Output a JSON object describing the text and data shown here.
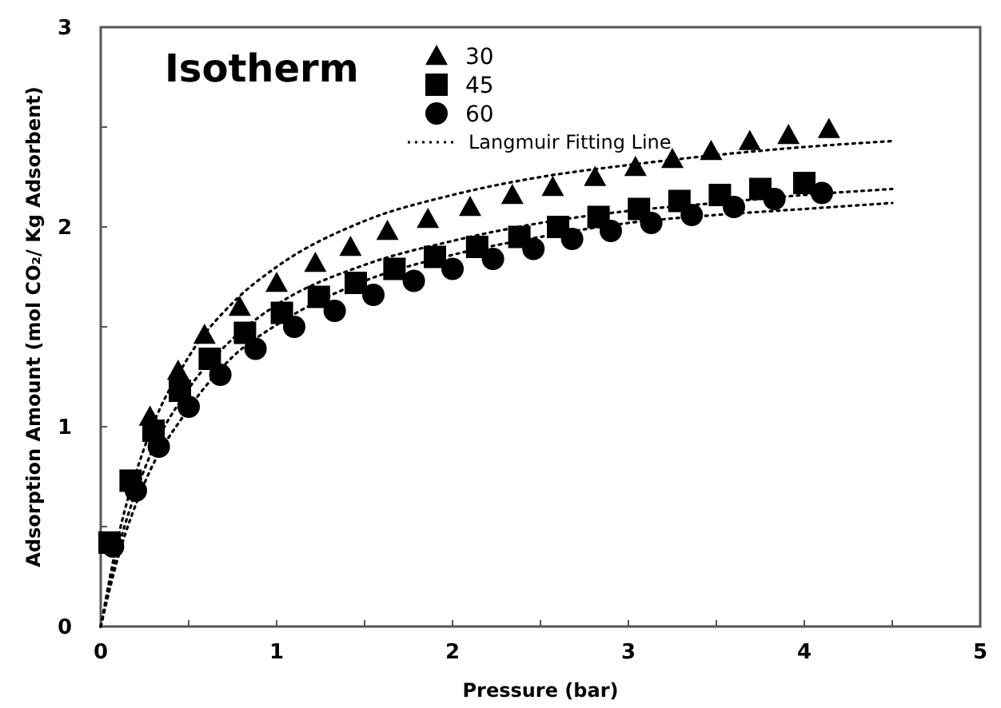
{
  "chart_data": {
    "type": "scatter",
    "xlabel": "Pressure (bar)",
    "ylabel": "Adsorption Amount (mol CO₂/ Kg Adsorbent)",
    "legend_title": "Isotherm",
    "legend": "top left",
    "grid": false,
    "xlim": [
      0,
      5
    ],
    "xticks": [
      0,
      {
        "value": 0.5,
        "label": null
      },
      1,
      {
        "value": 1.5,
        "label": null
      },
      2,
      {
        "value": 2.5,
        "label": null
      },
      3,
      {
        "value": 3.5,
        "label": null
      },
      4,
      {
        "value": 4.5,
        "label": null
      },
      5
    ],
    "ylim": [
      0,
      3
    ],
    "yticks": [
      0,
      {
        "value": 0.5,
        "label": null
      },
      1,
      {
        "value": 1.5,
        "label": null
      },
      2,
      {
        "value": 2.5,
        "label": null
      },
      3
    ],
    "series": [
      {
        "name": "30",
        "color": "#000000",
        "marker": "triangle",
        "x": [
          0.28,
          0.44,
          0.59,
          0.79,
          1.0,
          1.22,
          1.42,
          1.63,
          1.86,
          2.1,
          2.34,
          2.57,
          2.81,
          3.04,
          3.25,
          3.47,
          3.69,
          3.91,
          4.14
        ],
        "values": [
          1.05,
          1.28,
          1.46,
          1.6,
          1.72,
          1.82,
          1.9,
          1.98,
          2.04,
          2.1,
          2.16,
          2.2,
          2.25,
          2.3,
          2.34,
          2.38,
          2.43,
          2.46,
          2.49
        ]
      },
      {
        "name": "45",
        "color": "#000000",
        "marker": "square",
        "x": [
          0.05,
          0.17,
          0.3,
          0.45,
          0.62,
          0.82,
          1.03,
          1.24,
          1.45,
          1.67,
          1.9,
          2.14,
          2.38,
          2.6,
          2.83,
          3.06,
          3.29,
          3.52,
          3.75,
          4.0
        ],
        "values": [
          0.42,
          0.73,
          0.98,
          1.18,
          1.34,
          1.47,
          1.57,
          1.65,
          1.72,
          1.79,
          1.85,
          1.9,
          1.95,
          2.0,
          2.05,
          2.09,
          2.13,
          2.16,
          2.19,
          2.22
        ]
      },
      {
        "name": "60",
        "color": "#000000",
        "marker": "circle",
        "x": [
          0.07,
          0.2,
          0.33,
          0.5,
          0.68,
          0.88,
          1.1,
          1.33,
          1.55,
          1.78,
          2.0,
          2.23,
          2.46,
          2.68,
          2.9,
          3.13,
          3.36,
          3.6,
          3.83,
          4.1
        ],
        "values": [
          0.4,
          0.68,
          0.9,
          1.1,
          1.26,
          1.39,
          1.5,
          1.58,
          1.66,
          1.73,
          1.79,
          1.84,
          1.89,
          1.94,
          1.98,
          2.02,
          2.06,
          2.1,
          2.14,
          2.17
        ]
      },
      {
        "name": "Langmuir Fitting Line",
        "type": "line",
        "line_style": "dotted",
        "marker": "none",
        "color": "#000000",
        "x": [
          0,
          0.1,
          0.25,
          0.5,
          0.75,
          1,
          1.5,
          2,
          2.5,
          3,
          3.5,
          4,
          4.5
        ],
        "values": [
          0,
          0.45,
          0.9,
          1.35,
          1.62,
          1.8,
          2.03,
          2.16,
          2.25,
          2.31,
          2.36,
          2.4,
          2.43
        ]
      },
      {
        "type": "line",
        "line_style": "dotted",
        "marker": "none",
        "color": "#000000",
        "x": [
          0,
          0.1,
          0.25,
          0.5,
          0.75,
          1,
          1.5,
          2,
          2.5,
          3,
          3.5,
          4,
          4.5
        ],
        "values": [
          0,
          0.39,
          0.79,
          1.19,
          1.44,
          1.61,
          1.81,
          1.93,
          2.02,
          2.08,
          2.12,
          2.16,
          2.19
        ]
      },
      {
        "type": "line",
        "line_style": "dotted",
        "marker": "none",
        "color": "#000000",
        "x": [
          0,
          0.1,
          0.25,
          0.5,
          0.75,
          1,
          1.5,
          2,
          2.5,
          3,
          3.5,
          4,
          4.5
        ],
        "values": [
          0,
          0.35,
          0.72,
          1.09,
          1.35,
          1.51,
          1.73,
          1.86,
          1.95,
          2.02,
          2.06,
          2.09,
          2.12
        ]
      }
    ]
  }
}
